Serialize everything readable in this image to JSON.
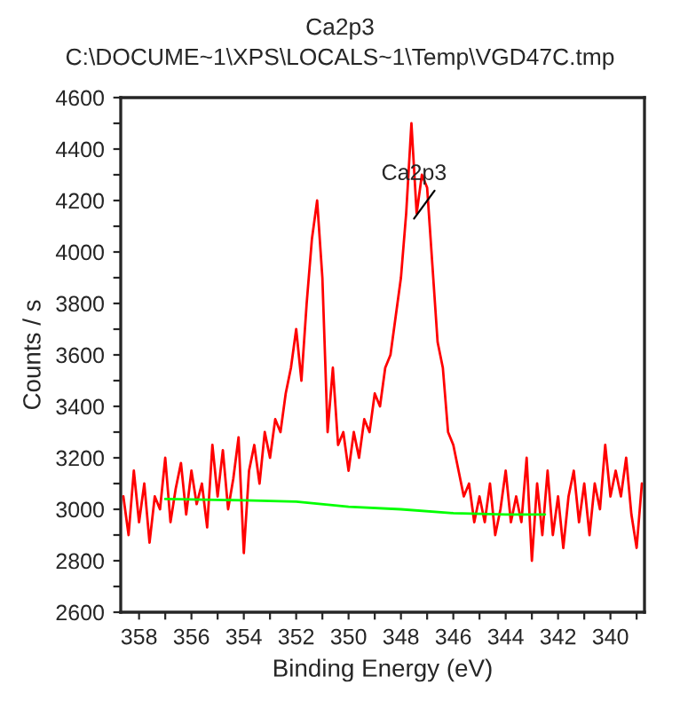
{
  "chart_data": {
    "type": "line",
    "title": "Ca2p3",
    "subtitle": "C:\\DOCUME~1\\XPS\\LOCALS~1\\Temp\\VGD47C.tmp",
    "xlabel": "Binding Energy (eV)",
    "ylabel": "Counts / s",
    "x": [
      358.6,
      358.4,
      358.2,
      358.0,
      357.8,
      357.6,
      357.4,
      357.2,
      357.0,
      356.8,
      356.6,
      356.4,
      356.2,
      356.0,
      355.8,
      355.6,
      355.4,
      355.2,
      355.0,
      354.8,
      354.6,
      354.4,
      354.2,
      354.0,
      353.8,
      353.6,
      353.4,
      353.2,
      353.0,
      352.8,
      352.6,
      352.4,
      352.2,
      352.0,
      351.8,
      351.6,
      351.4,
      351.2,
      351.0,
      350.8,
      350.6,
      350.4,
      350.2,
      350.0,
      349.8,
      349.6,
      349.4,
      349.2,
      349.0,
      348.8,
      348.6,
      348.4,
      348.2,
      348.0,
      347.8,
      347.6,
      347.4,
      347.2,
      347.0,
      346.8,
      346.6,
      346.4,
      346.2,
      346.0,
      345.8,
      345.6,
      345.4,
      345.2,
      345.0,
      344.8,
      344.6,
      344.4,
      344.2,
      344.0,
      343.8,
      343.6,
      343.4,
      343.2,
      343.0,
      342.8,
      342.6,
      342.4,
      342.2,
      342.0,
      341.8,
      341.6,
      341.4,
      341.2,
      341.0,
      340.8,
      340.6,
      340.4,
      340.2,
      340.0,
      339.8,
      339.6,
      339.4,
      339.2,
      339.0,
      338.8
    ],
    "series": [
      {
        "color": "#ff0000",
        "values": [
          3050,
          2900,
          3150,
          2950,
          3100,
          2870,
          3050,
          3000,
          3200,
          2950,
          3080,
          3180,
          2980,
          3150,
          3020,
          3100,
          2930,
          3250,
          3050,
          3230,
          3000,
          3120,
          3280,
          2830,
          3150,
          3250,
          3100,
          3300,
          3200,
          3350,
          3300,
          3450,
          3550,
          3700,
          3500,
          3800,
          4050,
          4200,
          3900,
          3300,
          3550,
          3250,
          3300,
          3150,
          3300,
          3200,
          3350,
          3300,
          3450,
          3400,
          3550,
          3600,
          3750,
          3900,
          4150,
          4500,
          4150,
          4300,
          4250,
          3950,
          3650,
          3550,
          3300,
          3250,
          3150,
          3050,
          3100,
          2950,
          3050,
          2950,
          3100,
          2900,
          3000,
          3150,
          2950,
          3050,
          2950,
          3200,
          2800,
          3100,
          2900,
          3150,
          2900,
          3050,
          2850,
          3050,
          3150,
          2950,
          3100,
          2900,
          3100,
          3000,
          3250,
          3050,
          3150,
          3050,
          3200,
          2980,
          2850,
          3100
        ]
      },
      {
        "color": "#00ff00",
        "x": [
          357.0,
          354.0,
          352.0,
          350.0,
          348.0,
          346.0,
          344.0,
          342.5
        ],
        "values": [
          3040,
          3035,
          3030,
          3010,
          3000,
          2985,
          2980,
          2980
        ]
      }
    ],
    "annotations": [
      {
        "text": "Ca2p3",
        "x": 347.5,
        "y": 4130
      }
    ],
    "xlim": [
      358.7,
      338.7
    ],
    "xticks": [
      358,
      {
        "value": 357,
        "label": null
      },
      356,
      {
        "value": 355,
        "label": null
      },
      354,
      {
        "value": 353,
        "label": null
      },
      352,
      {
        "value": 351,
        "label": null
      },
      350,
      {
        "value": 349,
        "label": null
      },
      348,
      {
        "value": 347,
        "label": null
      },
      346,
      {
        "value": 345,
        "label": null
      },
      344,
      {
        "value": 343,
        "label": null
      },
      342,
      {
        "value": 341,
        "label": null
      },
      340,
      {
        "value": 339,
        "label": null
      }
    ],
    "ylim": [
      2600,
      4600
    ],
    "yticks": [
      2600,
      {
        "value": 2700,
        "label": null
      },
      2800,
      {
        "value": 2900,
        "label": null
      },
      3000,
      {
        "value": 3100,
        "label": null
      },
      3200,
      {
        "value": 3300,
        "label": null
      },
      3400,
      {
        "value": 3500,
        "label": null
      },
      3600,
      {
        "value": 3700,
        "label": null
      },
      3800,
      {
        "value": 3900,
        "label": null
      },
      4000,
      {
        "value": 4100,
        "label": null
      },
      4200,
      {
        "value": 4300,
        "label": null
      },
      4400,
      {
        "value": 4500,
        "label": null
      },
      4600
    ],
    "grid": false
  }
}
